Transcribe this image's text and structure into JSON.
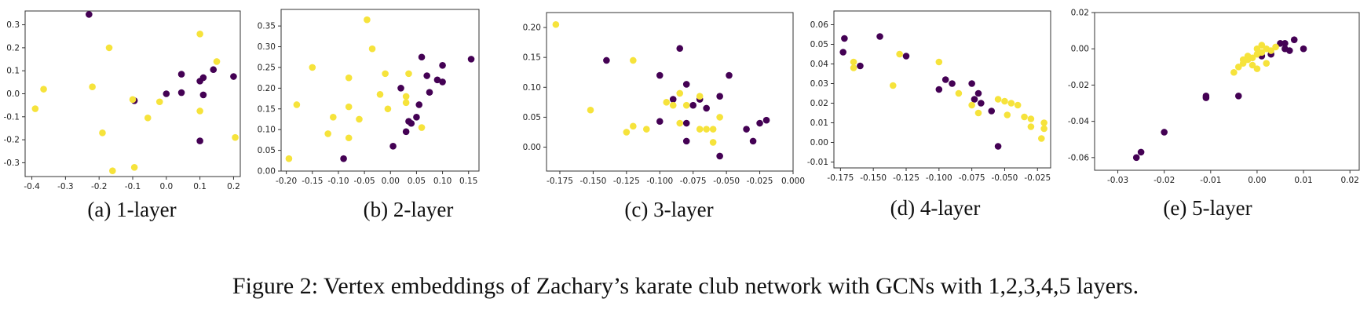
{
  "caption": "Figure 2: Vertex embeddings of Zachary’s karate club network with GCNs with 1,2,3,4,5 layers.",
  "colors": {
    "club_a": "#440154",
    "club_b": "#f6e33b",
    "axes": "#333333"
  },
  "chart_data": [
    {
      "type": "scatter",
      "subcaption": "(a) 1-layer",
      "xlim": [
        -0.42,
        0.22
      ],
      "ylim": [
        -0.36,
        0.36
      ],
      "xticks": [
        "-0.4",
        "-0.3",
        "-0.2",
        "-0.1",
        "0.0",
        "0.1",
        "0.2"
      ],
      "yticks": [
        "-0.3",
        "-0.2",
        "-0.1",
        "0.0",
        "0.1",
        "0.2",
        "0.3"
      ],
      "xtick_values": [
        -0.4,
        -0.3,
        -0.2,
        -0.1,
        0.0,
        0.1,
        0.2
      ],
      "ytick_values": [
        -0.3,
        -0.2,
        -0.1,
        0.0,
        0.1,
        0.2,
        0.3
      ],
      "series": [
        {
          "color": "#440154",
          "points": [
            [
              -0.23,
              0.345
            ],
            [
              -0.095,
              -0.03
            ],
            [
              0.0,
              0.0
            ],
            [
              0.045,
              0.085
            ],
            [
              0.045,
              0.005
            ],
            [
              0.1,
              0.055
            ],
            [
              0.11,
              0.07
            ],
            [
              0.14,
              0.105
            ],
            [
              0.11,
              -0.005
            ],
            [
              0.2,
              0.075
            ],
            [
              0.1,
              -0.205
            ]
          ]
        },
        {
          "color": "#f6e33b",
          "points": [
            [
              -0.39,
              -0.065
            ],
            [
              -0.365,
              0.02
            ],
            [
              -0.22,
              0.03
            ],
            [
              -0.17,
              0.2
            ],
            [
              -0.19,
              -0.17
            ],
            [
              -0.16,
              -0.335
            ],
            [
              -0.1,
              -0.025
            ],
            [
              -0.095,
              -0.32
            ],
            [
              -0.055,
              -0.105
            ],
            [
              -0.02,
              -0.035
            ],
            [
              0.1,
              0.26
            ],
            [
              0.15,
              0.14
            ],
            [
              0.1,
              -0.075
            ],
            [
              0.205,
              -0.19
            ]
          ]
        }
      ]
    },
    {
      "type": "scatter",
      "subcaption": "(b) 2-layer",
      "xlim": [
        -0.21,
        0.17
      ],
      "ylim": [
        0.0,
        0.39
      ],
      "xticks": [
        "-0.20",
        "-0.15",
        "-0.10",
        "-0.05",
        "0.00",
        "0.05",
        "0.10",
        "0.15"
      ],
      "yticks": [
        "0.00",
        "0.05",
        "0.10",
        "0.15",
        "0.20",
        "0.25",
        "0.30",
        "0.35"
      ],
      "xtick_values": [
        -0.2,
        -0.15,
        -0.1,
        -0.05,
        0.0,
        0.05,
        0.1,
        0.15
      ],
      "ytick_values": [
        0.0,
        0.05,
        0.1,
        0.15,
        0.2,
        0.25,
        0.3,
        0.35
      ],
      "series": [
        {
          "color": "#440154",
          "points": [
            [
              -0.09,
              0.03
            ],
            [
              0.005,
              0.06
            ],
            [
              0.02,
              0.2
            ],
            [
              0.03,
              0.095
            ],
            [
              0.035,
              0.12
            ],
            [
              0.04,
              0.115
            ],
            [
              0.05,
              0.13
            ],
            [
              0.06,
              0.275
            ],
            [
              0.055,
              0.16
            ],
            [
              0.07,
              0.23
            ],
            [
              0.075,
              0.19
            ],
            [
              0.09,
              0.22
            ],
            [
              0.1,
              0.255
            ],
            [
              0.1,
              0.215
            ],
            [
              0.155,
              0.27
            ]
          ]
        },
        {
          "color": "#f6e33b",
          "points": [
            [
              -0.195,
              0.03
            ],
            [
              -0.18,
              0.16
            ],
            [
              -0.15,
              0.25
            ],
            [
              -0.12,
              0.09
            ],
            [
              -0.11,
              0.13
            ],
            [
              -0.08,
              0.225
            ],
            [
              -0.08,
              0.155
            ],
            [
              -0.08,
              0.08
            ],
            [
              -0.06,
              0.125
            ],
            [
              -0.045,
              0.365
            ],
            [
              -0.035,
              0.295
            ],
            [
              -0.02,
              0.185
            ],
            [
              -0.01,
              0.235
            ],
            [
              -0.005,
              0.15
            ],
            [
              0.03,
              0.18
            ],
            [
              0.03,
              0.165
            ],
            [
              0.035,
              0.235
            ],
            [
              0.06,
              0.105
            ]
          ]
        }
      ]
    },
    {
      "type": "scatter",
      "subcaption": "(c) 3-layer",
      "xlim": [
        -0.185,
        0.0
      ],
      "ylim": [
        -0.04,
        0.225
      ],
      "xticks": [
        "-0.175",
        "-0.150",
        "-0.125",
        "-0.100",
        "-0.075",
        "-0.050",
        "-0.025",
        "0.000"
      ],
      "yticks": [
        "0.00",
        "0.05",
        "0.10",
        "0.15",
        "0.20"
      ],
      "xtick_values": [
        -0.175,
        -0.15,
        -0.125,
        -0.1,
        -0.075,
        -0.05,
        -0.025,
        0.0
      ],
      "ytick_values": [
        0.0,
        0.05,
        0.1,
        0.15,
        0.2
      ],
      "series": [
        {
          "color": "#440154",
          "points": [
            [
              -0.14,
              0.145
            ],
            [
              -0.085,
              0.165
            ],
            [
              -0.1,
              0.12
            ],
            [
              -0.08,
              0.105
            ],
            [
              -0.048,
              0.12
            ],
            [
              -0.09,
              0.08
            ],
            [
              -0.075,
              0.07
            ],
            [
              -0.07,
              0.08
            ],
            [
              -0.065,
              0.065
            ],
            [
              -0.055,
              0.085
            ],
            [
              -0.1,
              0.043
            ],
            [
              -0.08,
              0.04
            ],
            [
              -0.08,
              0.01
            ],
            [
              -0.035,
              0.03
            ],
            [
              -0.03,
              0.01
            ],
            [
              -0.025,
              0.04
            ],
            [
              -0.02,
              0.045
            ],
            [
              -0.055,
              -0.015
            ]
          ]
        },
        {
          "color": "#f6e33b",
          "points": [
            [
              -0.178,
              0.205
            ],
            [
              -0.152,
              0.062
            ],
            [
              -0.12,
              0.145
            ],
            [
              -0.12,
              0.035
            ],
            [
              -0.125,
              0.025
            ],
            [
              -0.11,
              0.03
            ],
            [
              -0.095,
              0.075
            ],
            [
              -0.09,
              0.07
            ],
            [
              -0.085,
              0.09
            ],
            [
              -0.08,
              0.07
            ],
            [
              -0.085,
              0.04
            ],
            [
              -0.07,
              0.085
            ],
            [
              -0.07,
              0.03
            ],
            [
              -0.065,
              0.03
            ],
            [
              -0.06,
              0.03
            ],
            [
              -0.055,
              0.05
            ],
            [
              -0.06,
              0.008
            ]
          ]
        }
      ]
    },
    {
      "type": "scatter",
      "subcaption": "(d) 4-layer",
      "xlim": [
        -0.18,
        -0.015
      ],
      "ylim": [
        -0.013,
        0.067
      ],
      "xticks": [
        "-0.175",
        "-0.150",
        "-0.125",
        "-0.100",
        "-0.075",
        "-0.050",
        "-0.025"
      ],
      "yticks": [
        "-0.01",
        "0.00",
        "0.01",
        "0.02",
        "0.03",
        "0.04",
        "0.05",
        "0.06"
      ],
      "xtick_values": [
        -0.175,
        -0.15,
        -0.125,
        -0.1,
        -0.075,
        -0.05,
        -0.025
      ],
      "ytick_values": [
        -0.01,
        0.0,
        0.01,
        0.02,
        0.03,
        0.04,
        0.05,
        0.06
      ],
      "series": [
        {
          "color": "#440154",
          "points": [
            [
              -0.172,
              0.053
            ],
            [
              -0.173,
              0.046
            ],
            [
              -0.16,
              0.039
            ],
            [
              -0.145,
              0.054
            ],
            [
              -0.125,
              0.044
            ],
            [
              -0.095,
              0.032
            ],
            [
              -0.09,
              0.03
            ],
            [
              -0.1,
              0.027
            ],
            [
              -0.075,
              0.03
            ],
            [
              -0.07,
              0.025
            ],
            [
              -0.068,
              0.02
            ],
            [
              -0.073,
              0.022
            ],
            [
              -0.06,
              0.016
            ],
            [
              -0.055,
              -0.002
            ]
          ]
        },
        {
          "color": "#f6e33b",
          "points": [
            [
              -0.165,
              0.041
            ],
            [
              -0.165,
              0.038
            ],
            [
              -0.13,
              0.045
            ],
            [
              -0.135,
              0.029
            ],
            [
              -0.1,
              0.041
            ],
            [
              -0.085,
              0.025
            ],
            [
              -0.07,
              0.015
            ],
            [
              -0.075,
              0.019
            ],
            [
              -0.055,
              0.022
            ],
            [
              -0.048,
              0.014
            ],
            [
              -0.045,
              0.02
            ],
            [
              -0.04,
              0.019
            ],
            [
              -0.035,
              0.013
            ],
            [
              -0.03,
              0.012
            ],
            [
              -0.03,
              0.008
            ],
            [
              -0.02,
              0.01
            ],
            [
              -0.02,
              0.007
            ],
            [
              -0.022,
              0.002
            ],
            [
              -0.05,
              0.021
            ]
          ]
        }
      ]
    },
    {
      "type": "scatter",
      "subcaption": "(e) 5-layer",
      "xlim": [
        -0.035,
        0.022
      ],
      "ylim": [
        -0.067,
        0.02
      ],
      "xticks": [
        "-0.03",
        "-0.02",
        "-0.01",
        "0.00",
        "0.01",
        "0.02"
      ],
      "yticks": [
        "-0.06",
        "-0.04",
        "-0.02",
        "0.00",
        "0.02"
      ],
      "xtick_values": [
        -0.03,
        -0.02,
        -0.01,
        0.0,
        0.01,
        0.02
      ],
      "ytick_values": [
        -0.06,
        -0.04,
        -0.02,
        0.0,
        0.02
      ],
      "series": [
        {
          "color": "#440154",
          "points": [
            [
              -0.026,
              -0.06
            ],
            [
              -0.025,
              -0.057
            ],
            [
              -0.02,
              -0.046
            ],
            [
              -0.011,
              -0.027
            ],
            [
              -0.011,
              -0.026
            ],
            [
              -0.004,
              -0.026
            ],
            [
              0.001,
              -0.004
            ],
            [
              0.003,
              -0.003
            ],
            [
              0.005,
              0.003
            ],
            [
              0.006,
              0.003
            ],
            [
              0.008,
              0.005
            ],
            [
              0.007,
              -0.001
            ],
            [
              0.01,
              0.0
            ],
            [
              0.006,
              0.0
            ]
          ]
        },
        {
          "color": "#f6e33b",
          "points": [
            [
              -0.005,
              -0.013
            ],
            [
              -0.004,
              -0.01
            ],
            [
              -0.003,
              -0.008
            ],
            [
              -0.002,
              -0.006
            ],
            [
              -0.001,
              -0.005
            ],
            [
              0.0,
              -0.003
            ],
            [
              0.0,
              0.0
            ],
            [
              0.001,
              -0.002
            ],
            [
              -0.001,
              -0.009
            ],
            [
              0.0,
              -0.011
            ],
            [
              0.002,
              -0.008
            ],
            [
              0.002,
              0.0
            ],
            [
              0.003,
              -0.001
            ],
            [
              -0.002,
              -0.004
            ],
            [
              -0.003,
              -0.006
            ],
            [
              0.004,
              0.001
            ],
            [
              0.001,
              0.002
            ]
          ]
        }
      ]
    }
  ]
}
